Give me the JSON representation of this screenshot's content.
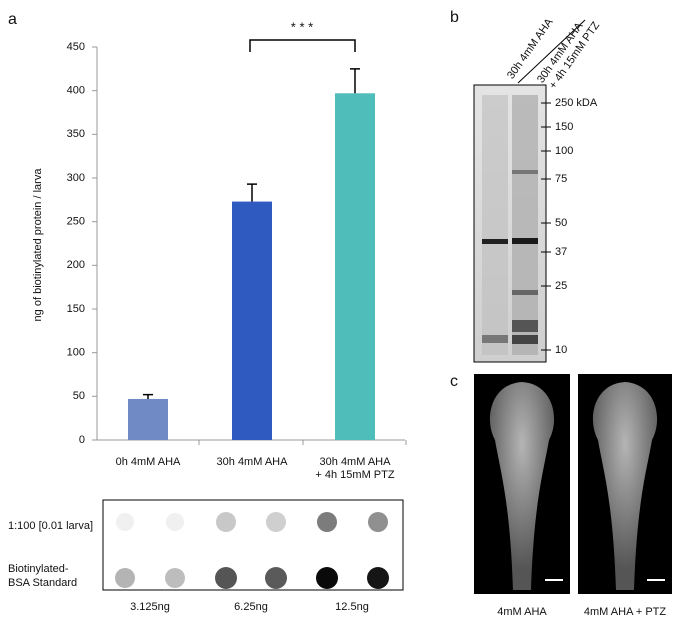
{
  "chart_data": {
    "type": "bar",
    "panel_label": "a",
    "y_label": "ng of biotinylated protein / larva",
    "categories": [
      [
        "0h 4mM AHA"
      ],
      [
        "30h 4mM AHA"
      ],
      [
        "30h 4mM AHA",
        "+ 4h 15mM PTZ"
      ]
    ],
    "values": [
      47,
      273,
      397
    ],
    "errors": [
      5,
      20,
      28
    ],
    "colors": [
      "#6f8ac4",
      "#2f5bc0",
      "#4fbdb9"
    ],
    "ylim": [
      0,
      450
    ],
    "yticks": [
      0,
      50,
      100,
      150,
      200,
      250,
      300,
      350,
      400,
      450
    ],
    "annotation": "* * *"
  },
  "dot_blot": {
    "rows": [
      "1:100 [0.01 larva]",
      [
        "Biotinylated-",
        "BSA Standard"
      ]
    ],
    "columns": [
      "3.125ng",
      "6.25ng",
      "12.5ng"
    ]
  },
  "western_blot": {
    "panel_label": "b",
    "lanes": [
      [
        "30h 4mM AHA"
      ],
      [
        "30h 4mM AHA",
        "+ 4h 15mM PTZ"
      ]
    ],
    "markers": [
      "250 kDA",
      "150",
      "100",
      "75",
      "50",
      "37",
      "25",
      "10"
    ]
  },
  "imaging": {
    "panel_label": "c",
    "labels": [
      "4mM AHA",
      "4mM AHA + PTZ"
    ]
  }
}
